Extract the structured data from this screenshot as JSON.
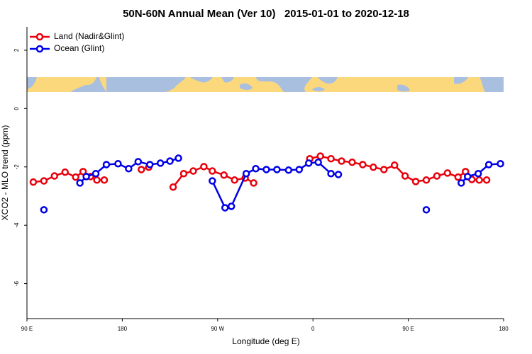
{
  "chart_data": {
    "type": "line",
    "title": "50N-60N Annual Mean (Ver 10)   2015-01-01 to 2020-12-18",
    "x_label": "Longitude (deg E)",
    "y_label": "XCO2 - MLO trend (ppm)",
    "xlim": [
      90,
      540
    ],
    "ylim": [
      -7.2,
      2.8
    ],
    "xticks": [
      {
        "value": 90,
        "label": "90 E"
      },
      {
        "value": 180,
        "label": "180"
      },
      {
        "value": 270,
        "label": "90 W"
      },
      {
        "value": 360,
        "label": "0"
      },
      {
        "value": 450,
        "label": "90 E"
      },
      {
        "value": 540,
        "label": "180"
      }
    ],
    "yticks": [
      -6,
      -4,
      -2,
      0,
      2
    ],
    "legend": "top-left",
    "series": [
      {
        "name": "Land (Nadir&Glint)",
        "color": "#e8000b",
        "x": [
          96,
          106,
          116,
          126,
          136,
          143,
          150,
          156,
          163,
          null,
          198,
          205,
          null,
          228,
          238,
          247,
          257,
          265,
          276,
          286,
          296,
          304,
          null,
          357,
          367,
          377,
          387,
          397,
          407,
          417,
          427,
          437,
          447,
          457,
          467,
          477,
          487,
          497,
          504,
          510,
          517,
          524
        ],
        "values": [
          -2.52,
          -2.48,
          -2.31,
          -2.18,
          -2.35,
          -2.16,
          -2.33,
          -2.45,
          -2.45,
          null,
          -2.09,
          -2.01,
          null,
          -2.69,
          -2.23,
          -2.14,
          -1.99,
          -2.14,
          -2.28,
          -2.45,
          -2.38,
          -2.55,
          null,
          -1.72,
          -1.63,
          -1.72,
          -1.8,
          -1.84,
          -1.92,
          -2.01,
          -2.09,
          -1.94,
          -2.31,
          -2.5,
          -2.45,
          -2.31,
          -2.21,
          -2.35,
          -2.16,
          -2.43,
          -2.45,
          -2.45
        ]
      },
      {
        "name": "Ocean (Glint)",
        "color": "#0000e6",
        "x": [
          106,
          null,
          140,
          146,
          155,
          165,
          176,
          186,
          195,
          206,
          216,
          225,
          233,
          null,
          265,
          277,
          283,
          297,
          306,
          316,
          326,
          337,
          347,
          356,
          365,
          377,
          384,
          null,
          467,
          null,
          500,
          506,
          516,
          526,
          537
        ],
        "values": [
          -3.47,
          null,
          -2.55,
          -2.33,
          -2.23,
          -1.92,
          -1.89,
          -2.06,
          -1.82,
          -1.92,
          -1.87,
          -1.8,
          -1.7,
          null,
          -2.48,
          -3.4,
          -3.35,
          -2.23,
          -2.06,
          -2.09,
          -2.09,
          -2.11,
          -2.09,
          -1.87,
          -1.84,
          -2.23,
          -2.26,
          null,
          -3.47,
          null,
          -2.55,
          -2.33,
          -2.23,
          -1.92,
          -1.89
        ]
      }
    ]
  }
}
